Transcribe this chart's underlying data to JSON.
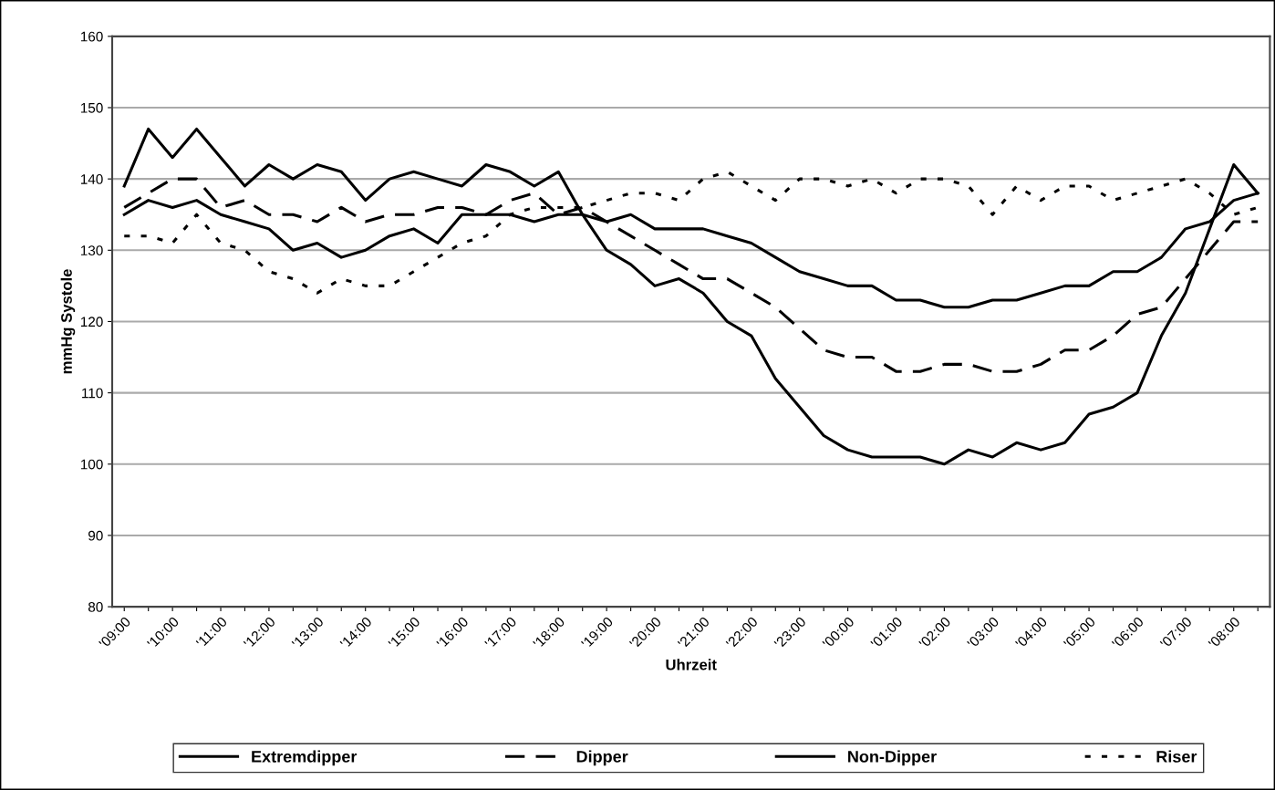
{
  "chart_data": {
    "type": "line",
    "xlabel": "Uhrzeit",
    "ylabel": "mmHg Systole",
    "categories": [
      "'09:00",
      null,
      "'10:00",
      null,
      "'11:00",
      null,
      "'12:00",
      null,
      "'13:00",
      null,
      "'14:00",
      null,
      "'15:00",
      null,
      "'16:00",
      null,
      "'17:00",
      null,
      "'18:00",
      null,
      "'19:00",
      null,
      "'20:00",
      null,
      "'21:00",
      null,
      "'22:00",
      null,
      "'23:00",
      null,
      "'00:00",
      null,
      "'01:00",
      null,
      "'02:00",
      null,
      "'03:00",
      null,
      "'04:00",
      null,
      "'05:00",
      null,
      "'06:00",
      null,
      "'07:00",
      null,
      "'08:00",
      null
    ],
    "series": [
      {
        "name": "Extremdipper",
        "color": "#000000",
        "line_style": "solid",
        "values": [
          139,
          147,
          143,
          147,
          143,
          139,
          142,
          140,
          142,
          141,
          137,
          140,
          141,
          140,
          139,
          142,
          141,
          139,
          141,
          135,
          130,
          128,
          125,
          126,
          124,
          120,
          118,
          112,
          108,
          104,
          102,
          101,
          101,
          101,
          100,
          102,
          101,
          103,
          102,
          103,
          107,
          108,
          110,
          118,
          124,
          133,
          142,
          138
        ]
      },
      {
        "name": "Dipper",
        "color": "#000000",
        "line_style": "dashed",
        "values": [
          136,
          138,
          140,
          140,
          136,
          137,
          135,
          135,
          134,
          136,
          134,
          135,
          135,
          136,
          136,
          135,
          137,
          138,
          135,
          136,
          134,
          132,
          130,
          128,
          126,
          126,
          124,
          122,
          119,
          116,
          115,
          115,
          113,
          113,
          114,
          114,
          113,
          113,
          114,
          116,
          116,
          118,
          121,
          122,
          126,
          130,
          134,
          134
        ]
      },
      {
        "name": "Non-Dipper",
        "color": "#000000",
        "line_style": "solid",
        "values": [
          135,
          137,
          136,
          137,
          135,
          134,
          133,
          130,
          131,
          129,
          130,
          132,
          133,
          131,
          135,
          135,
          135,
          134,
          135,
          135,
          134,
          135,
          133,
          133,
          133,
          132,
          131,
          129,
          127,
          126,
          125,
          125,
          123,
          123,
          122,
          122,
          123,
          123,
          124,
          125,
          125,
          127,
          127,
          129,
          133,
          134,
          137,
          138
        ]
      },
      {
        "name": "Riser",
        "color": "#000000",
        "line_style": "dotted",
        "values": [
          132,
          132,
          131,
          135,
          131,
          130,
          127,
          126,
          124,
          126,
          125,
          125,
          127,
          129,
          131,
          132,
          135,
          136,
          136,
          136,
          137,
          138,
          138,
          137,
          140,
          141,
          139,
          137,
          140,
          140,
          139,
          140,
          138,
          140,
          140,
          139,
          135,
          139,
          137,
          139,
          139,
          137,
          138,
          139,
          140,
          138,
          135,
          136
        ]
      }
    ],
    "ylim": [
      80,
      160
    ],
    "yticks": [
      80,
      90,
      100,
      110,
      120,
      130,
      140,
      150,
      160
    ],
    "grid": "y",
    "legend": "bottom",
    "marker": "none"
  }
}
